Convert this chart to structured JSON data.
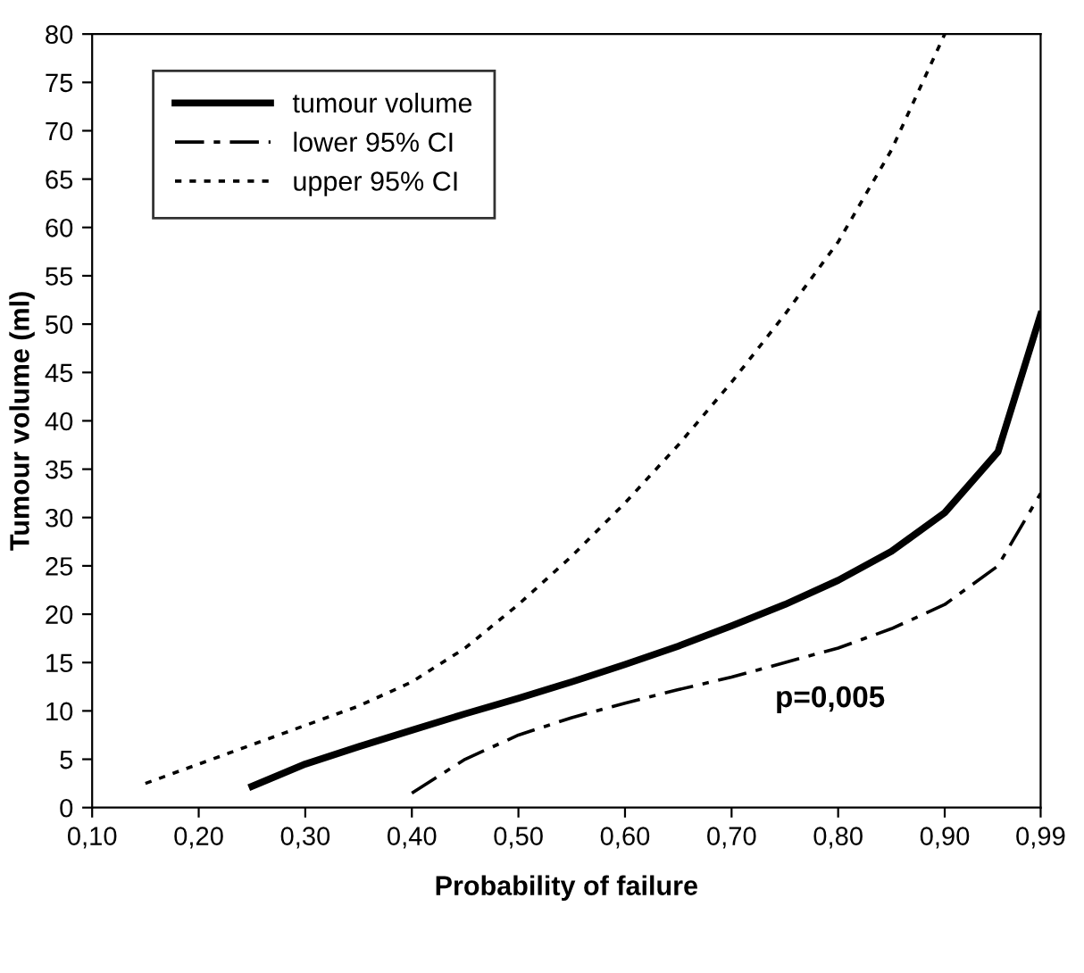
{
  "chart_data": {
    "type": "line",
    "xlabel": "Probability of failure",
    "ylabel": "Tumour volume (ml)",
    "xlim": [
      0.1,
      0.99
    ],
    "ylim": [
      0,
      80
    ],
    "xticks": [
      {
        "value": 0.1,
        "label": "0,10"
      },
      {
        "value": 0.2,
        "label": "0,20"
      },
      {
        "value": 0.3,
        "label": "0,30"
      },
      {
        "value": 0.4,
        "label": "0,40"
      },
      {
        "value": 0.5,
        "label": "0,50"
      },
      {
        "value": 0.6,
        "label": "0,60"
      },
      {
        "value": 0.7,
        "label": "0,70"
      },
      {
        "value": 0.8,
        "label": "0,80"
      },
      {
        "value": 0.9,
        "label": "0,90"
      },
      {
        "value": 0.99,
        "label": "0,99"
      }
    ],
    "yticks": [
      0,
      5,
      10,
      15,
      20,
      25,
      30,
      35,
      40,
      45,
      50,
      55,
      60,
      65,
      70,
      75,
      80
    ],
    "grid": false,
    "legend": "top left",
    "marker": "none",
    "annotations": [
      "p=0,005"
    ],
    "series": [
      {
        "name": "tumour volume",
        "color": "#000000",
        "line_style": "solid",
        "x": [
          0.25,
          0.3,
          0.35,
          0.4,
          0.45,
          0.5,
          0.55,
          0.6,
          0.65,
          0.7,
          0.75,
          0.8,
          0.85,
          0.9,
          0.95,
          0.99
        ],
        "values": [
          2.2,
          4.5,
          6.3,
          8,
          9.7,
          11.3,
          13,
          14.8,
          16.7,
          18.8,
          21,
          23.5,
          26.5,
          30.5,
          36.8,
          51
        ]
      },
      {
        "name": "lower 95% CI",
        "color": "#000000",
        "line_style": "dashed",
        "x": [
          0.4,
          0.45,
          0.5,
          0.55,
          0.6,
          0.65,
          0.7,
          0.75,
          0.8,
          0.85,
          0.9,
          0.95,
          0.99
        ],
        "values": [
          1.5,
          5,
          7.5,
          9.3,
          10.8,
          12.2,
          13.5,
          15,
          16.5,
          18.5,
          21,
          25,
          32.5
        ]
      },
      {
        "name": "upper 95% CI",
        "color": "#000000",
        "line_style": "dotted",
        "x": [
          0.15,
          0.2,
          0.25,
          0.3,
          0.35,
          0.4,
          0.45,
          0.5,
          0.55,
          0.6,
          0.65,
          0.7,
          0.75,
          0.8,
          0.85,
          0.9
        ],
        "values": [
          2.5,
          4.5,
          6.5,
          8.5,
          10.5,
          13,
          16.5,
          21,
          26,
          31.5,
          37.5,
          44,
          51,
          58.5,
          68,
          80
        ]
      }
    ]
  }
}
